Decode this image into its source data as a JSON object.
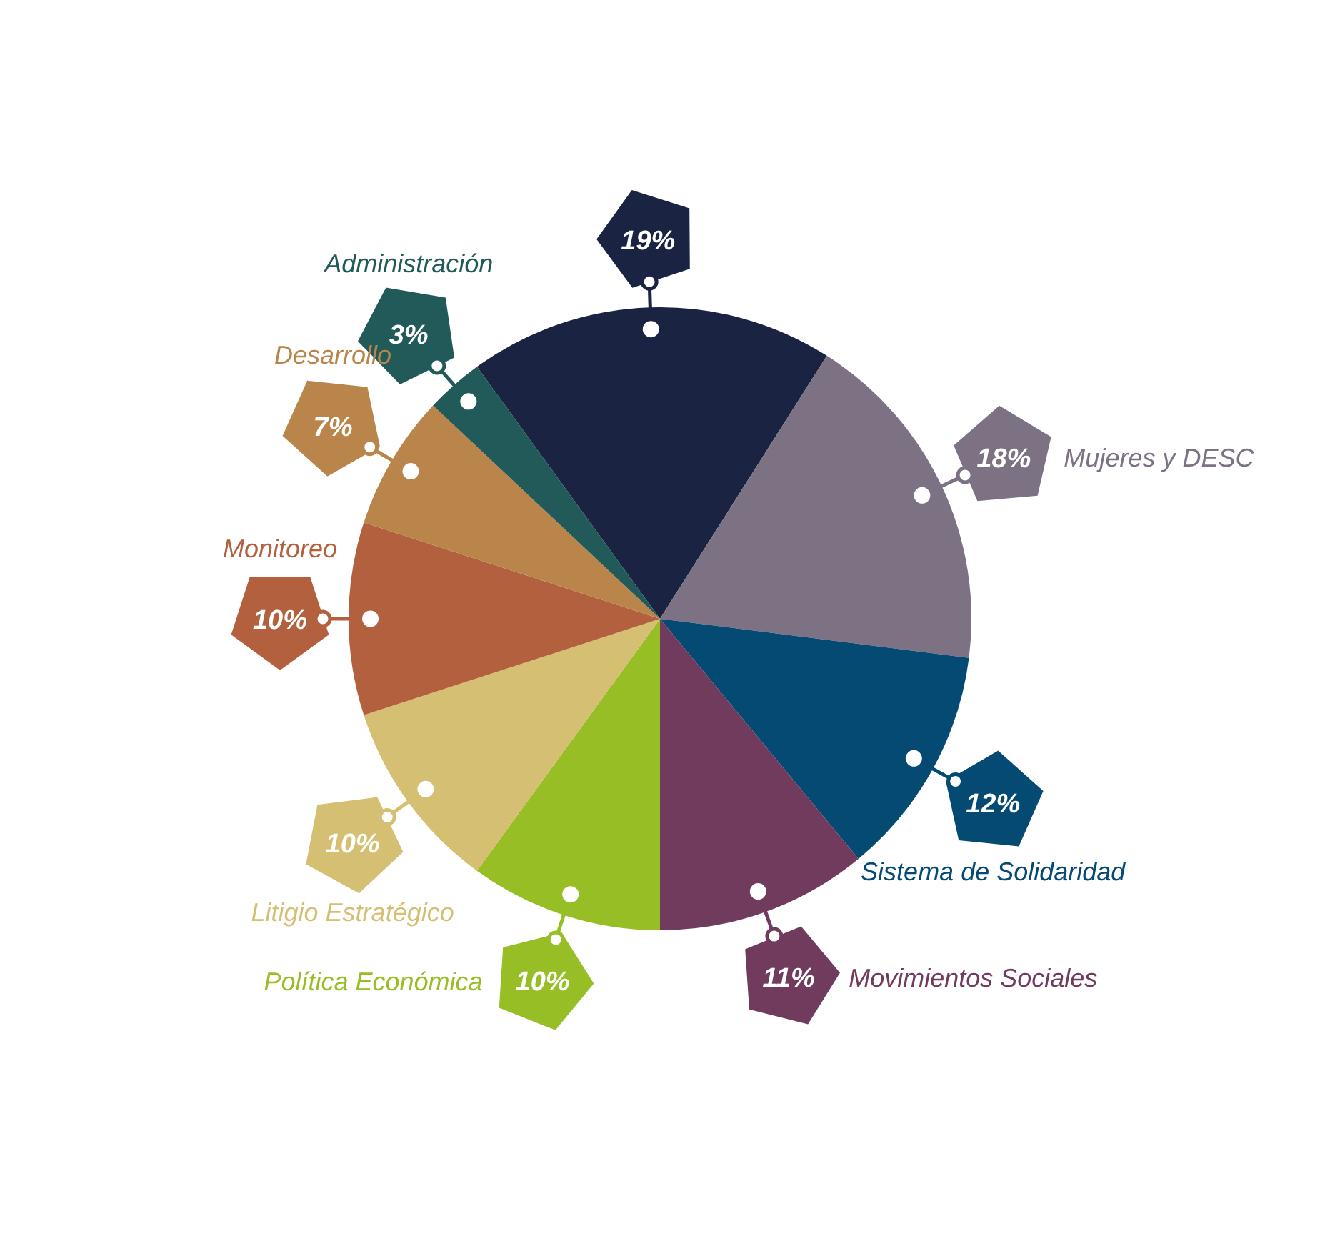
{
  "chart_data": {
    "type": "pie",
    "categories": [
      null,
      "Mujeres y DESC",
      "Sistema de Solidaridad",
      "Movimientos Sociales",
      "Política Económica",
      "Litigio Estratégico",
      "Monitoreo",
      "Desarrollo",
      "Administración"
    ],
    "values": [
      19,
      18,
      12,
      11,
      10,
      10,
      10,
      7,
      3
    ],
    "value_labels": [
      "19%",
      "18%",
      "12%",
      "11%",
      "10%",
      "10%",
      "10%",
      "7%",
      "3%"
    ],
    "colors": [
      "#1b2342",
      "#7d7184",
      "#044a72",
      "#713b5e",
      "#98be26",
      "#d5bf72",
      "#b3603f",
      "#b9854b",
      "#225a5a"
    ],
    "legend": false
  }
}
